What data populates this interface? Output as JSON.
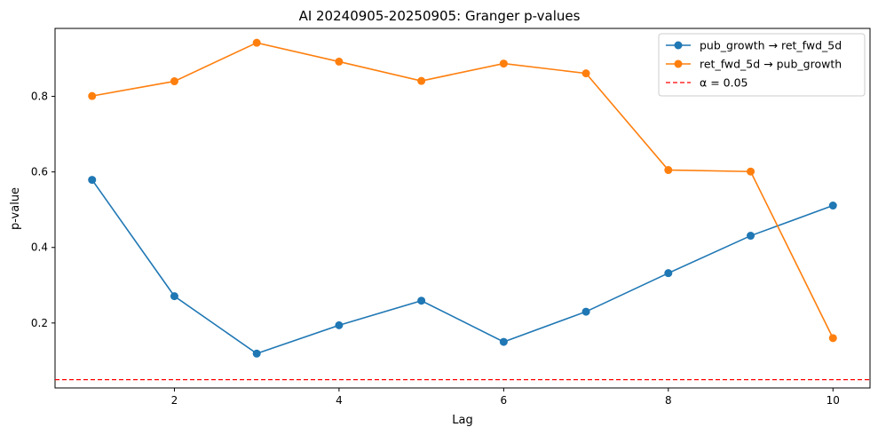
{
  "chart_data": {
    "type": "line",
    "title": "AI 20240905-20250905: Granger p-values",
    "xlabel": "Lag",
    "ylabel": "p-value",
    "x": [
      1,
      2,
      3,
      4,
      5,
      6,
      7,
      8,
      9,
      10
    ],
    "xlim": [
      0.55,
      10.45
    ],
    "ylim": [
      0.028,
      0.98
    ],
    "xticks": [
      2,
      4,
      6,
      8,
      10
    ],
    "xtick_labels": [
      "2",
      "4",
      "6",
      "8",
      "10"
    ],
    "yticks": [
      0.2,
      0.4,
      0.6,
      0.8
    ],
    "ytick_labels": [
      "0.2",
      "0.4",
      "0.6",
      "0.8"
    ],
    "grid": false,
    "legend_position": "top-right",
    "series": [
      {
        "name": "pub_growth → ret_fwd_5d",
        "color": "#1f77b4",
        "values": [
          0.579,
          0.271,
          0.119,
          0.194,
          0.259,
          0.15,
          0.23,
          0.332,
          0.431,
          0.511
        ]
      },
      {
        "name": "ret_fwd_5d → pub_growth",
        "color": "#ff7f0e",
        "values": [
          0.801,
          0.84,
          0.942,
          0.892,
          0.841,
          0.887,
          0.861,
          0.605,
          0.601,
          0.16
        ]
      }
    ],
    "reference_line": {
      "name": "α = 0.05",
      "value": 0.05,
      "color": "#ff0000",
      "style": "dashed"
    }
  }
}
